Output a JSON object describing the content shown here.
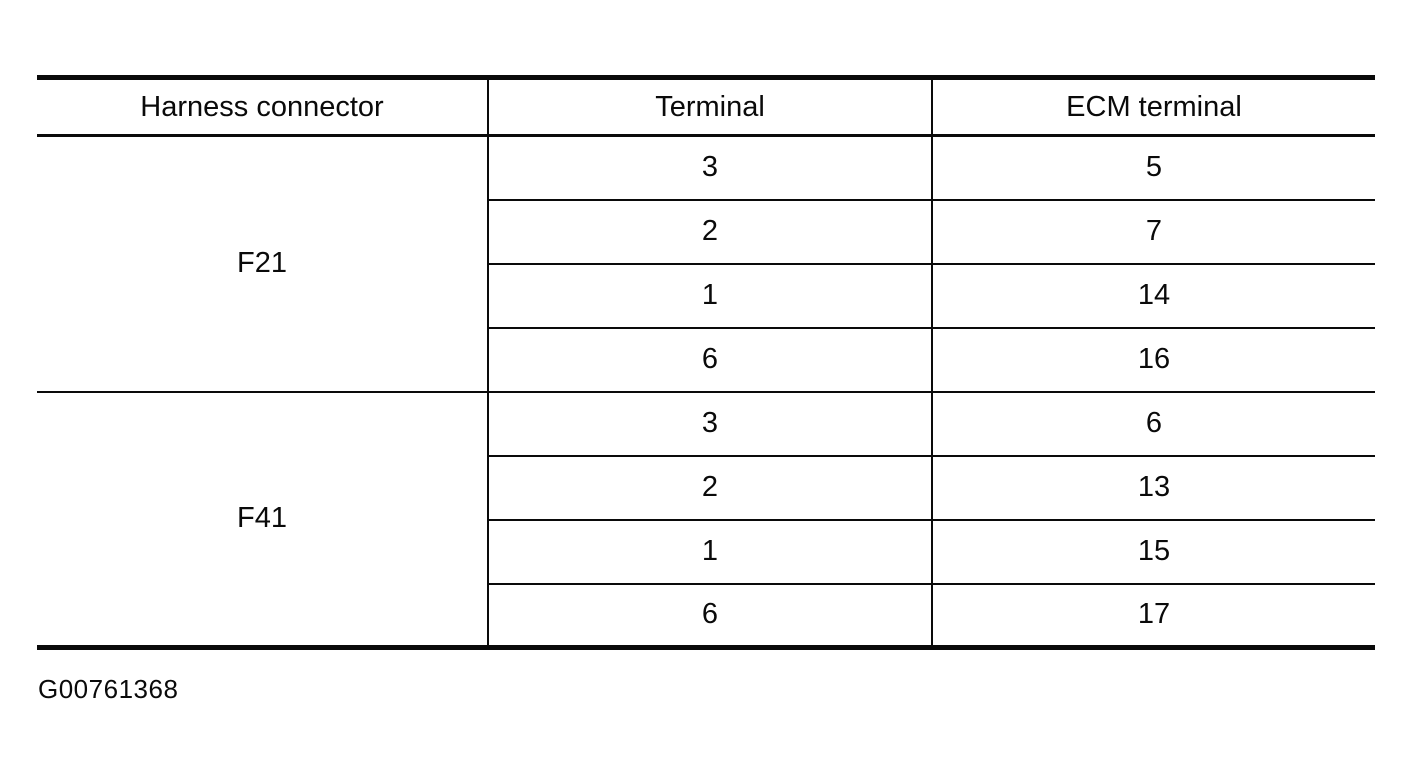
{
  "table": {
    "headers": [
      "Harness connector",
      "Terminal",
      "ECM terminal"
    ],
    "groups": [
      {
        "connector": "F21",
        "rows": [
          {
            "terminal": "3",
            "ecm": "5"
          },
          {
            "terminal": "2",
            "ecm": "7"
          },
          {
            "terminal": "1",
            "ecm": "14"
          },
          {
            "terminal": "6",
            "ecm": "16"
          }
        ]
      },
      {
        "connector": "F41",
        "rows": [
          {
            "terminal": "3",
            "ecm": "6"
          },
          {
            "terminal": "2",
            "ecm": "13"
          },
          {
            "terminal": "1",
            "ecm": "15"
          },
          {
            "terminal": "6",
            "ecm": "17"
          }
        ]
      }
    ]
  },
  "figure_id": "G00761368",
  "colors": {
    "ink": "#0a0a0a",
    "background": "#ffffff"
  }
}
